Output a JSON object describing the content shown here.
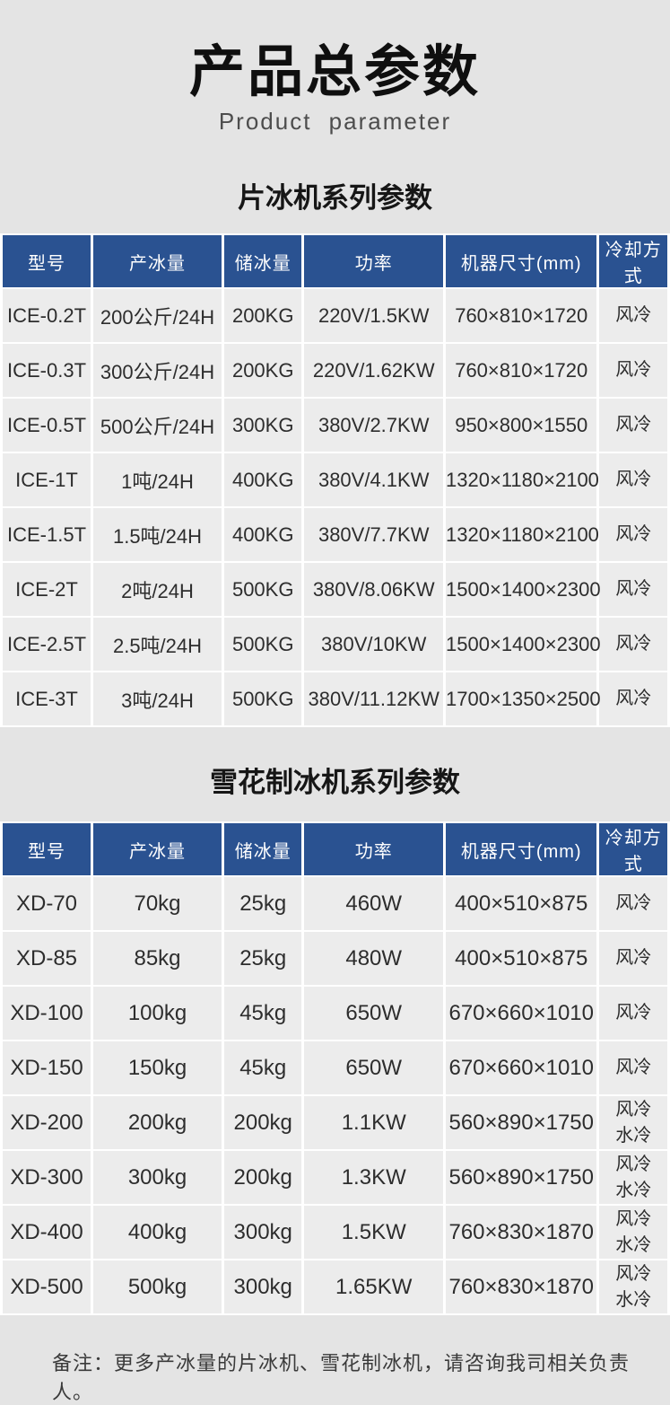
{
  "page": {
    "title": "产品总参数",
    "subtitle": "Product parameter",
    "note": "备注：更多产冰量的片冰机、雪花制冰机，请咨询我司相关负责人。"
  },
  "colors": {
    "page_background": "#e4e4e4",
    "cell_background": "#ececec",
    "header_background": "#2a5291",
    "header_text": "#ffffff",
    "body_text": "#2d2d2d"
  },
  "tables": [
    {
      "heading": "片冰机系列参数",
      "columns": [
        "型号",
        "产冰量",
        "储冰量",
        "功率",
        "机器尺寸(mm)",
        "冷却方式"
      ],
      "rows": [
        [
          "ICE-0.2T",
          "200公斤/24H",
          "200KG",
          "220V/1.5KW",
          "760×810×1720",
          "风冷"
        ],
        [
          "ICE-0.3T",
          "300公斤/24H",
          "200KG",
          "220V/1.62KW",
          "760×810×1720",
          "风冷"
        ],
        [
          "ICE-0.5T",
          "500公斤/24H",
          "300KG",
          "380V/2.7KW",
          "950×800×1550",
          "风冷"
        ],
        [
          "ICE-1T",
          "1吨/24H",
          "400KG",
          "380V/4.1KW",
          "1320×1180×2100",
          "风冷"
        ],
        [
          "ICE-1.5T",
          "1.5吨/24H",
          "400KG",
          "380V/7.7KW",
          "1320×1180×2100",
          "风冷"
        ],
        [
          "ICE-2T",
          "2吨/24H",
          "500KG",
          "380V/8.06KW",
          "1500×1400×2300",
          "风冷"
        ],
        [
          "ICE-2.5T",
          "2.5吨/24H",
          "500KG",
          "380V/10KW",
          "1500×1400×2300",
          "风冷"
        ],
        [
          "ICE-3T",
          "3吨/24H",
          "500KG",
          "380V/11.12KW",
          "1700×1350×2500",
          "风冷"
        ]
      ]
    },
    {
      "heading": "雪花制冰机系列参数",
      "columns": [
        "型号",
        "产冰量",
        "储冰量",
        "功率",
        "机器尺寸(mm)",
        "冷却方式"
      ],
      "rows": [
        [
          "XD-70",
          "70kg",
          "25kg",
          "460W",
          "400×510×875",
          "风冷"
        ],
        [
          "XD-85",
          "85kg",
          "25kg",
          "480W",
          "400×510×875",
          "风冷"
        ],
        [
          "XD-100",
          "100kg",
          "45kg",
          "650W",
          "670×660×1010",
          "风冷"
        ],
        [
          "XD-150",
          "150kg",
          "45kg",
          "650W",
          "670×660×1010",
          "风冷"
        ],
        [
          "XD-200",
          "200kg",
          "200kg",
          "1.1KW",
          "560×890×1750",
          "风冷\n水冷"
        ],
        [
          "XD-300",
          "300kg",
          "200kg",
          "1.3KW",
          "560×890×1750",
          "风冷\n水冷"
        ],
        [
          "XD-400",
          "400kg",
          "300kg",
          "1.5KW",
          "760×830×1870",
          "风冷\n水冷"
        ],
        [
          "XD-500",
          "500kg",
          "300kg",
          "1.65KW",
          "760×830×1870",
          "风冷\n水冷"
        ]
      ]
    }
  ]
}
